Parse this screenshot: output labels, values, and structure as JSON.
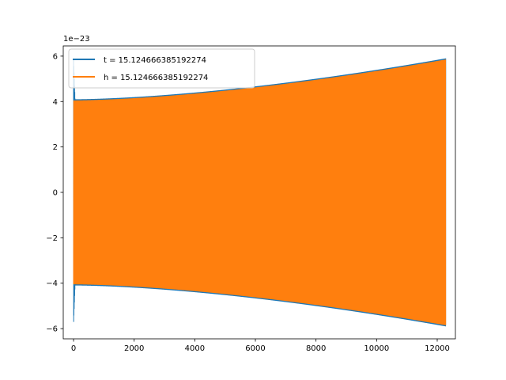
{
  "chart_data": {
    "type": "line",
    "title": "",
    "xlabel": "",
    "ylabel": "",
    "offset_text": "1e−23",
    "xlim": [
      -340,
      12600
    ],
    "ylim": [
      -6.45,
      6.45
    ],
    "x_ticks": [
      0,
      2000,
      4000,
      6000,
      8000,
      10000,
      12000
    ],
    "x_tick_labels": [
      "0",
      "2000",
      "4000",
      "6000",
      "8000",
      "10000",
      "12000"
    ],
    "y_ticks": [
      -6,
      -4,
      -2,
      0,
      2,
      4,
      6
    ],
    "y_tick_labels": [
      "−6",
      "−4",
      "−2",
      "0",
      "2",
      "4",
      "6"
    ],
    "grid": false,
    "legend_position": "top-left",
    "series": [
      {
        "name": "t = 15.124666385192274",
        "color": "#1f77b4",
        "x_range": [
          0,
          12280
        ],
        "amplitude_start": 5.85,
        "amplitude_at_50": 4.1,
        "amplitude_end": 5.9,
        "oscillation": "dense sinusoid, amplitude decays sharply near x=0 then grows slowly"
      },
      {
        "name": "h = 15.124666385192274",
        "color": "#ff7f0e",
        "x_range": [
          0,
          12280
        ],
        "amplitude_start": 4.05,
        "amplitude_end": 5.85,
        "oscillation": "dense sinusoid, amplitude grows slowly with x"
      }
    ]
  }
}
